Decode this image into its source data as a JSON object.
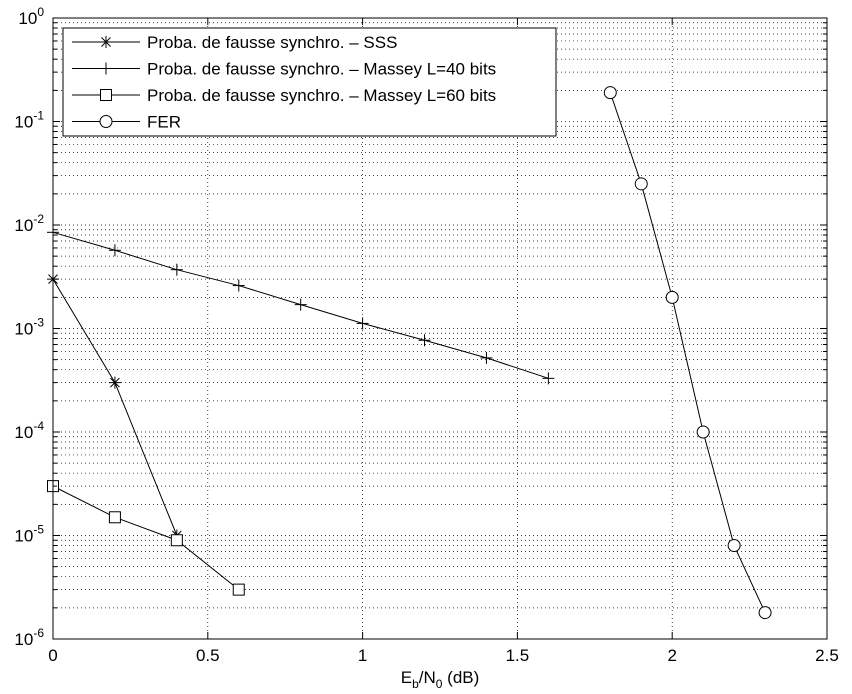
{
  "chart_data": {
    "type": "line",
    "xlabel": {
      "base": "E",
      "sub1": "b",
      "mid": "/N",
      "sub2": "0",
      "tail": " (dB)"
    },
    "ylabel": "",
    "xlim": [
      0,
      2.5
    ],
    "ylim": [
      1e-06,
      1
    ],
    "yscale": "log",
    "grid": true,
    "legend_position": "top-left",
    "x_ticks": [
      {
        "value": 0,
        "label": "0"
      },
      {
        "value": 0.5,
        "label": "0.5"
      },
      {
        "value": 1,
        "label": "1"
      },
      {
        "value": 1.5,
        "label": "1.5"
      },
      {
        "value": 2,
        "label": "2"
      },
      {
        "value": 2.5,
        "label": "2.5"
      }
    ],
    "y_ticks": [
      {
        "value": 1,
        "base": "10",
        "exp": "0"
      },
      {
        "value": 0.1,
        "base": "10",
        "exp": "-1"
      },
      {
        "value": 0.01,
        "base": "10",
        "exp": "-2"
      },
      {
        "value": 0.001,
        "base": "10",
        "exp": "-3"
      },
      {
        "value": 0.0001,
        "base": "10",
        "exp": "-4"
      },
      {
        "value": 1e-05,
        "base": "10",
        "exp": "-5"
      },
      {
        "value": 1e-06,
        "base": "10",
        "exp": "-6"
      }
    ],
    "series": [
      {
        "name": "Proba. de fausse synchro. – SSS",
        "marker": "star",
        "x": [
          0,
          0.2,
          0.4
        ],
        "y": [
          0.003,
          0.0003,
          1e-05
        ]
      },
      {
        "name": "Proba. de fausse synchro. – Massey L=40 bits",
        "marker": "plus",
        "x": [
          0,
          0.2,
          0.4,
          0.6,
          0.8,
          1.0,
          1.2,
          1.4,
          1.6
        ],
        "y": [
          0.0085,
          0.0057,
          0.0037,
          0.0026,
          0.0017,
          0.00112,
          0.00077,
          0.00052,
          0.00033
        ]
      },
      {
        "name": "Proba. de fausse synchro. – Massey L=60 bits",
        "marker": "square",
        "x": [
          0,
          0.2,
          0.4,
          0.6
        ],
        "y": [
          3e-05,
          1.5e-05,
          9e-06,
          3e-06
        ]
      },
      {
        "name": "FER",
        "marker": "circle",
        "x": [
          1.8,
          1.9,
          2.0,
          2.1,
          2.2,
          2.3
        ],
        "y": [
          0.19,
          0.025,
          0.002,
          0.0001,
          8e-06,
          1.8e-06
        ]
      }
    ]
  }
}
